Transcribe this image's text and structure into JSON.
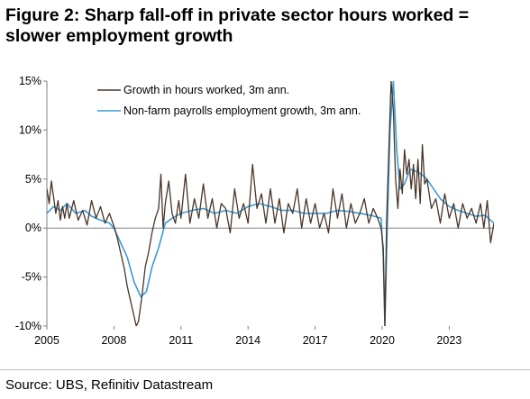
{
  "title": {
    "line1": "Figure 2: Sharp fall-off in private sector hours worked =",
    "line2": "slower employment growth"
  },
  "source": "Source: UBS, Refinitiv Datastream",
  "chart_data": {
    "type": "line",
    "x_ticks": [
      "2005",
      "2008",
      "2011",
      "2014",
      "2017",
      "2020",
      "2023"
    ],
    "x_range": [
      2005.0,
      2025.0
    ],
    "y_ticks": [
      "15%",
      "10%",
      "5%",
      "0%",
      "-5%",
      "-10%"
    ],
    "y_tick_values": [
      15,
      10,
      5,
      0,
      -5,
      -10
    ],
    "ylim": [
      -10,
      15
    ],
    "grid": false,
    "legend_position": "top-left",
    "colors": {
      "hours": "#4a3528",
      "payrolls": "#3a9bd5",
      "axis": "#808080"
    },
    "series": [
      {
        "name": "Growth in hours worked, 3m ann.",
        "x": [
          2005.0,
          2005.1,
          2005.2,
          2005.3,
          2005.4,
          2005.5,
          2005.6,
          2005.7,
          2005.8,
          2005.9,
          2006.0,
          2006.2,
          2006.4,
          2006.6,
          2006.8,
          2007.0,
          2007.2,
          2007.4,
          2007.6,
          2007.8,
          2008.0,
          2008.15,
          2008.3,
          2008.45,
          2008.6,
          2008.75,
          2008.9,
          2009.0,
          2009.1,
          2009.25,
          2009.4,
          2009.55,
          2009.7,
          2009.85,
          2010.0,
          2010.1,
          2010.2,
          2010.3,
          2010.45,
          2010.6,
          2010.75,
          2010.9,
          2011.0,
          2011.2,
          2011.4,
          2011.6,
          2011.8,
          2012.0,
          2012.2,
          2012.4,
          2012.6,
          2012.8,
          2013.0,
          2013.2,
          2013.4,
          2013.6,
          2013.8,
          2014.0,
          2014.2,
          2014.4,
          2014.6,
          2014.8,
          2015.0,
          2015.2,
          2015.4,
          2015.6,
          2015.8,
          2016.0,
          2016.2,
          2016.4,
          2016.6,
          2016.8,
          2017.0,
          2017.2,
          2017.4,
          2017.6,
          2017.8,
          2018.0,
          2018.2,
          2018.4,
          2018.6,
          2018.8,
          2019.0,
          2019.2,
          2019.4,
          2019.6,
          2019.8,
          2019.95,
          2020.05,
          2020.12,
          2020.2,
          2020.3,
          2020.4,
          2020.5,
          2020.6,
          2020.7,
          2020.8,
          2020.9,
          2021.0,
          2021.1,
          2021.2,
          2021.3,
          2021.4,
          2021.5,
          2021.6,
          2021.7,
          2021.8,
          2021.9,
          2022.0,
          2022.2,
          2022.4,
          2022.6,
          2022.8,
          2023.0,
          2023.2,
          2023.4,
          2023.6,
          2023.8,
          2024.0,
          2024.2,
          2024.4,
          2024.55,
          2024.7,
          2024.85,
          2025.0
        ],
        "values": [
          4.0,
          2.5,
          4.8,
          3.2,
          1.5,
          2.8,
          0.8,
          2.2,
          1.0,
          2.5,
          1.0,
          2.8,
          0.8,
          1.8,
          0.3,
          2.8,
          1.0,
          2.2,
          0.5,
          1.5,
          0.2,
          -1.0,
          -2.5,
          -4.0,
          -6.0,
          -7.5,
          -9.0,
          -10.0,
          -9.5,
          -7.0,
          -4.0,
          -2.5,
          -0.5,
          1.0,
          2.0,
          5.5,
          0.0,
          2.5,
          4.8,
          1.5,
          0.5,
          2.8,
          1.0,
          5.5,
          0.5,
          3.0,
          1.0,
          4.5,
          1.0,
          3.0,
          0.0,
          2.5,
          2.0,
          -0.5,
          4.0,
          1.0,
          2.5,
          0.5,
          6.5,
          2.0,
          3.5,
          0.5,
          4.0,
          0.5,
          3.0,
          -0.5,
          2.5,
          1.5,
          4.0,
          0.0,
          3.0,
          0.5,
          2.5,
          0.0,
          1.5,
          -0.5,
          4.0,
          1.0,
          3.5,
          0.0,
          2.5,
          0.5,
          1.5,
          3.0,
          0.5,
          2.0,
          1.0,
          0.0,
          -2.0,
          -10.0,
          1.0,
          8.0,
          15.0,
          12.0,
          5.0,
          2.0,
          6.0,
          3.5,
          8.0,
          5.5,
          7.0,
          4.0,
          6.5,
          3.0,
          7.0,
          2.5,
          8.5,
          4.5,
          5.0,
          2.0,
          3.0,
          0.5,
          3.5,
          1.0,
          2.5,
          0.0,
          2.5,
          1.0,
          2.0,
          0.5,
          2.5,
          0.0,
          2.8,
          -1.5,
          0.5
        ]
      },
      {
        "name": "Non-farm payrolls employment growth, 3m ann.",
        "x": [
          2005.0,
          2005.3,
          2005.6,
          2005.9,
          2006.3,
          2006.7,
          2007.0,
          2007.4,
          2007.8,
          2008.0,
          2008.3,
          2008.6,
          2008.9,
          2009.2,
          2009.45,
          2009.7,
          2010.0,
          2010.3,
          2010.6,
          2011.0,
          2011.5,
          2012.0,
          2012.5,
          2013.0,
          2013.5,
          2014.0,
          2014.5,
          2015.0,
          2015.5,
          2016.0,
          2016.5,
          2017.0,
          2017.5,
          2018.0,
          2018.5,
          2019.0,
          2019.5,
          2019.95,
          2020.05,
          2020.12,
          2020.2,
          2020.35,
          2020.5,
          2020.65,
          2020.8,
          2021.0,
          2021.25,
          2021.5,
          2021.75,
          2022.0,
          2022.3,
          2022.6,
          2023.0,
          2023.4,
          2023.8,
          2024.2,
          2024.6,
          2025.0
        ],
        "values": [
          1.5,
          2.2,
          1.8,
          2.5,
          1.5,
          1.8,
          1.2,
          0.8,
          0.5,
          0.0,
          -1.5,
          -3.0,
          -5.5,
          -7.0,
          -6.5,
          -4.0,
          -2.0,
          0.5,
          1.0,
          1.5,
          1.8,
          2.0,
          1.5,
          1.8,
          1.5,
          2.2,
          2.5,
          2.2,
          1.8,
          1.8,
          1.5,
          1.5,
          1.5,
          1.8,
          1.7,
          1.5,
          1.3,
          1.0,
          -3.0,
          -10.0,
          -2.0,
          10.0,
          15.0,
          8.0,
          4.0,
          4.5,
          6.0,
          5.8,
          5.5,
          5.0,
          4.0,
          3.0,
          2.2,
          1.8,
          1.5,
          1.2,
          1.3,
          0.5
        ]
      }
    ]
  }
}
